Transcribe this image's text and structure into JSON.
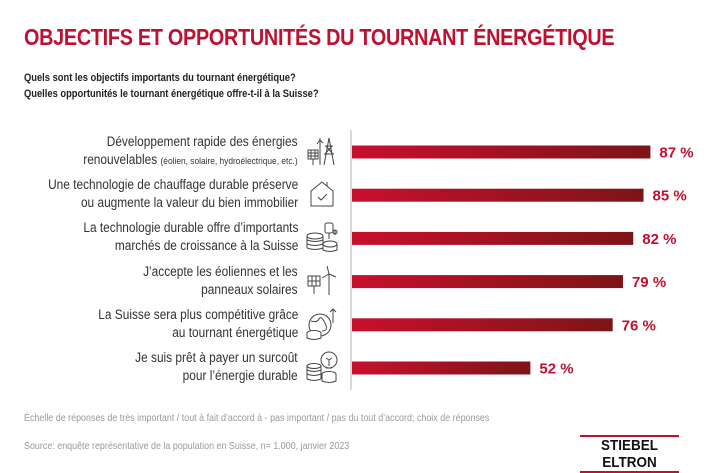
{
  "title": "OBJECTIFS ET OPPORTUNITÉS DU TOURNANT ÉNERGÉTIQUE",
  "subtitle_lines": [
    "Quels sont les objectifs importants du tournant énergétique?",
    "Quelles opportunités le tournant énergétique offre-t-il à la Suisse?"
  ],
  "colors": {
    "title": "#c0102f",
    "bar_start": "#c8102e",
    "bar_end": "#7d1418",
    "value_label": "#c0102f"
  },
  "chart_data": {
    "type": "bar",
    "orientation": "horizontal",
    "categories": [
      {
        "line1": "Développement rapide des énergies",
        "line2": "renouvelables",
        "line2_small": "(éolien, solaire, hydroélectrique, etc.)",
        "icon": "renewable-energy-icon"
      },
      {
        "line1": "Une technologie de chauffage durable préserve",
        "line2": "ou augmente la valeur du bien immobilier",
        "line2_small": "",
        "icon": "house-check-icon"
      },
      {
        "line1": "La technologie durable offre d’importants",
        "line2": "marchés de croissance à la Suisse",
        "line2_small": "",
        "icon": "coins-heat-pump-icon"
      },
      {
        "line1": "J’accepte les éoliennes et les",
        "line2": "panneaux solaires",
        "line2_small": "",
        "icon": "solar-wind-icon"
      },
      {
        "line1": "La Suisse sera plus compétitive grâce",
        "line2": "au tournant énergétique",
        "line2_small": "",
        "icon": "globe-growth-icon"
      },
      {
        "line1": "Je suis prêt à payer un surcoût",
        "line2": "pour l’énergie durable",
        "line2_small": "",
        "icon": "coins-bulb-icon"
      }
    ],
    "values": [
      87,
      85,
      82,
      79,
      76,
      52
    ],
    "value_labels": [
      "87 %",
      "85 %",
      "82 %",
      "79 %",
      "76 %",
      "52 %"
    ],
    "unit": "%",
    "xlim": [
      0,
      100
    ],
    "grid": false
  },
  "footnote": "Échelle de réponses de très important / tout à fait d’accord à - pas important / pas du tout d’accord; choix de réponses",
  "source": "Source: enquête représentative de la population en Suisse, n= 1.000, janvier 2023",
  "logo": "STIEBEL ELTRON"
}
